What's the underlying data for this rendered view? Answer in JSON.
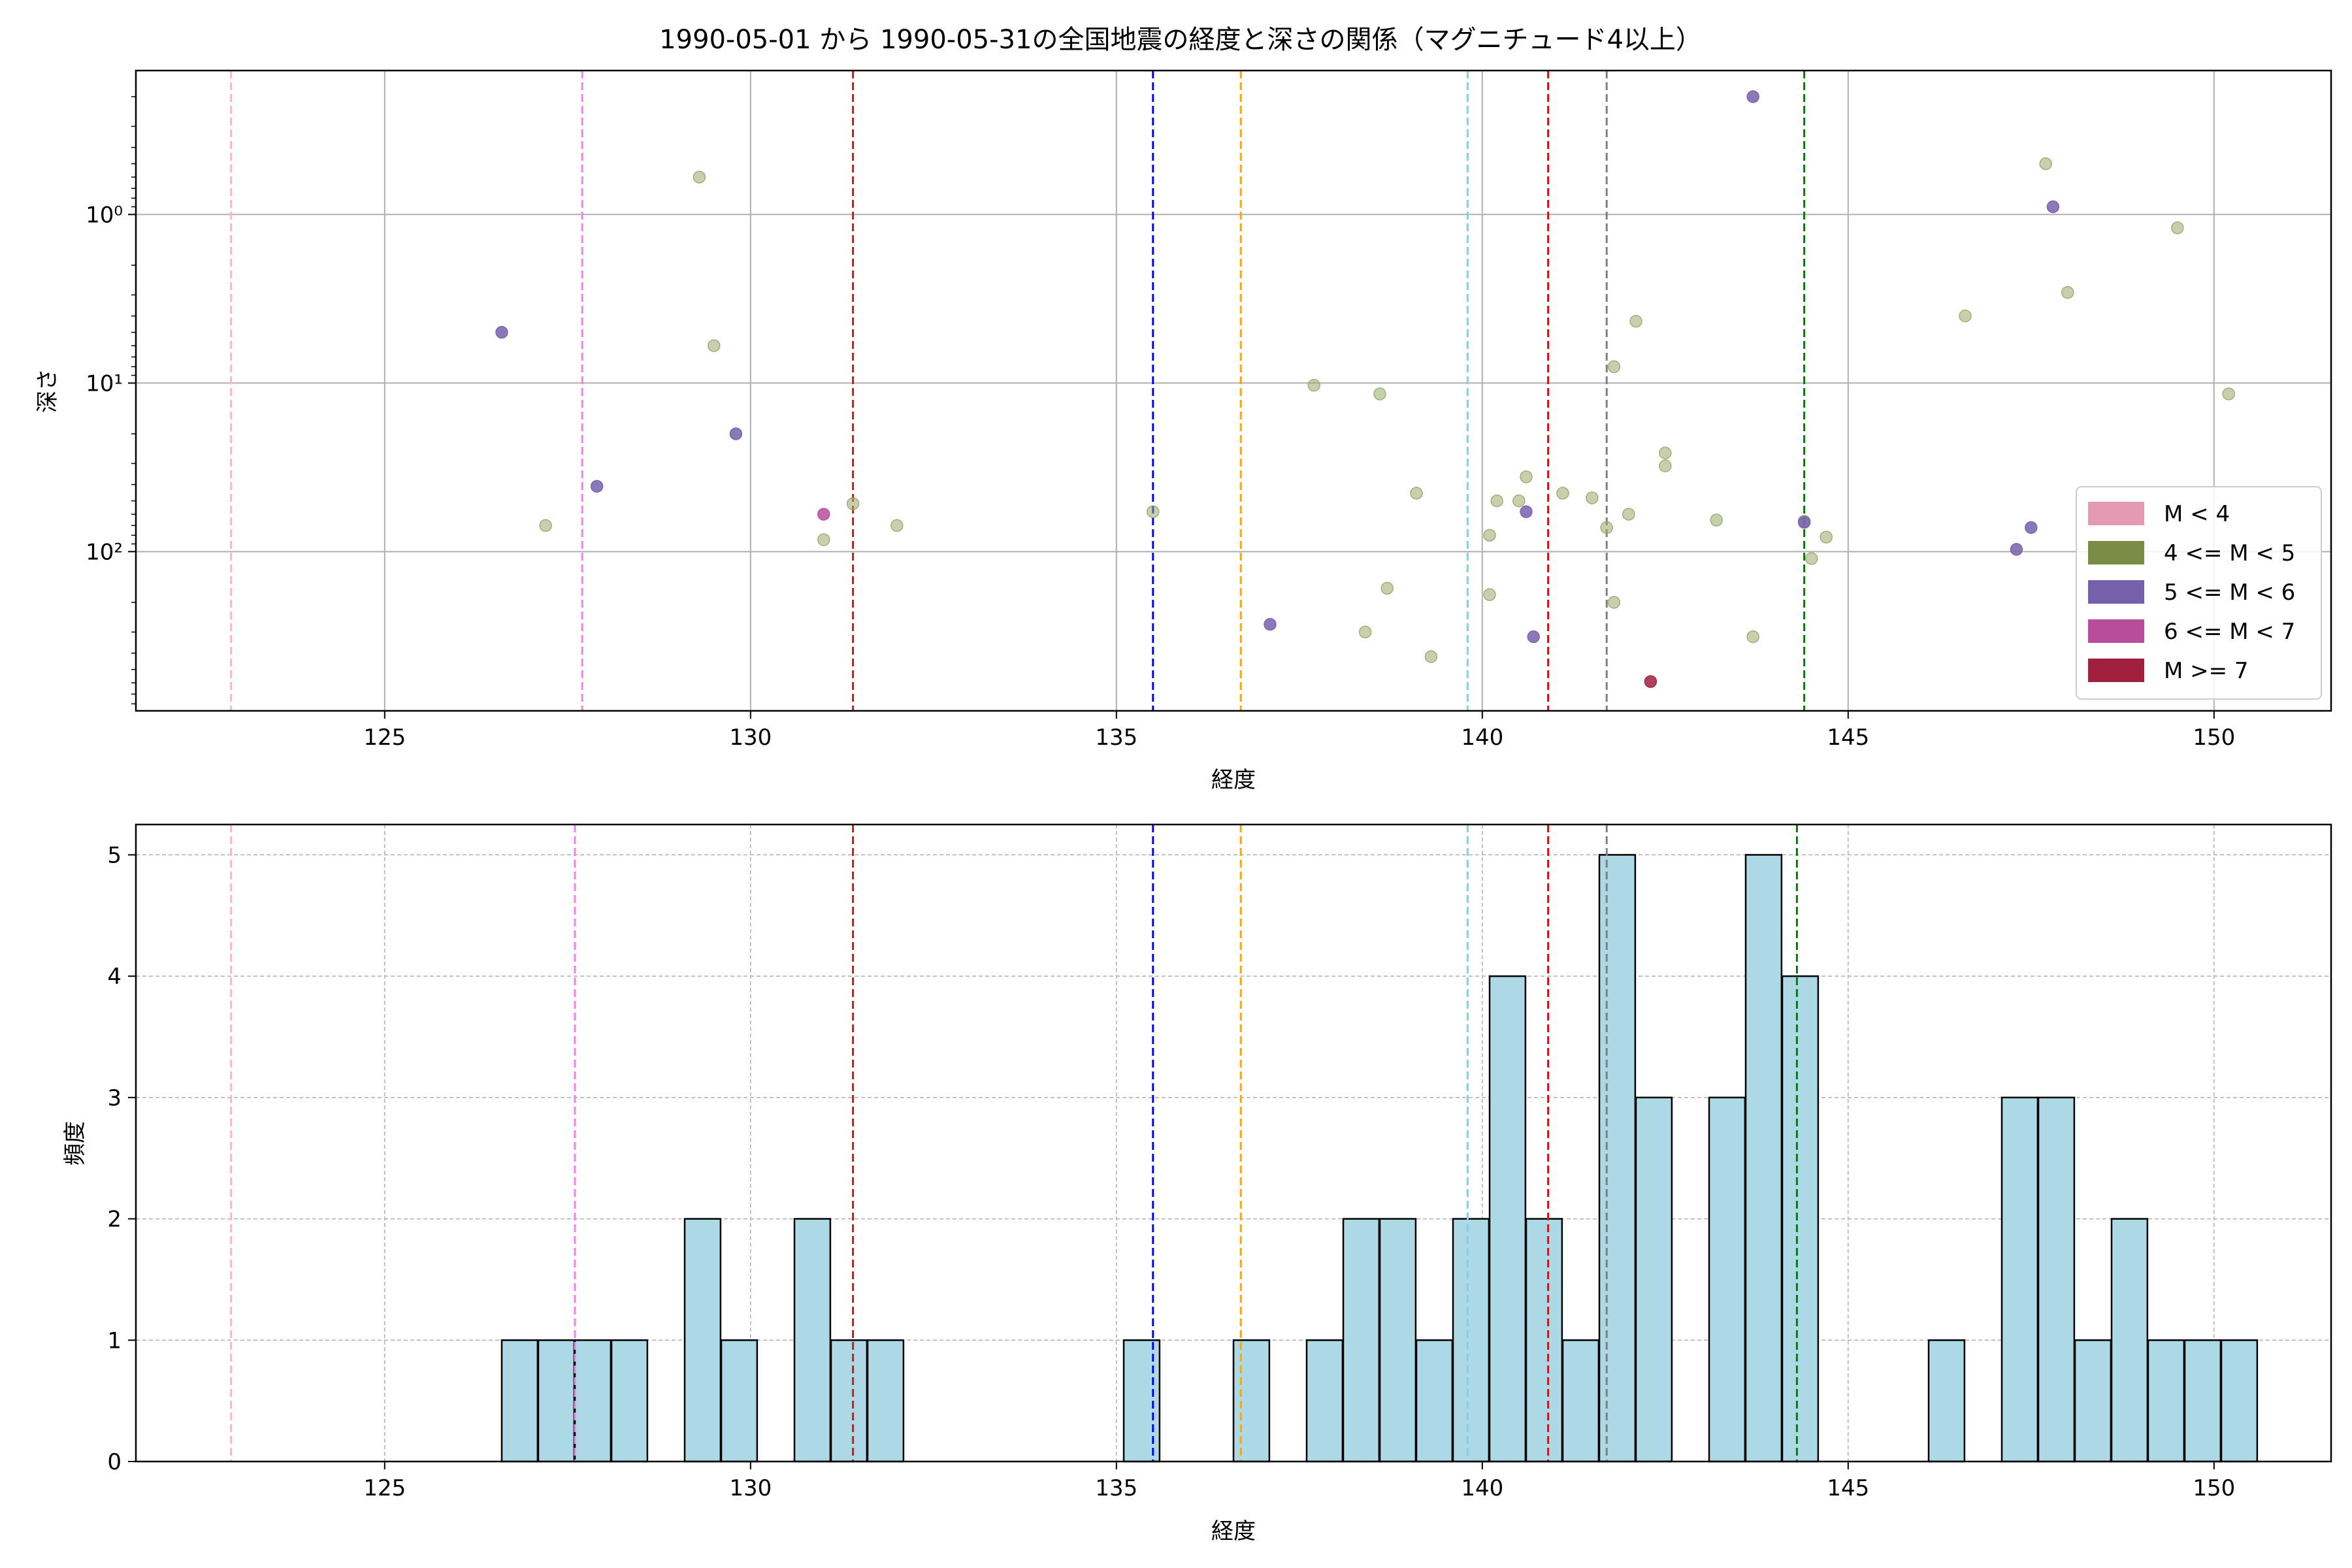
{
  "chart_data": [
    {
      "type": "scatter",
      "title": "1990-05-01 から 1990-05-31の全国地震の経度と深さの関係（マグニチュード4以上）",
      "xlabel": "経度",
      "ylabel": "深さ",
      "xlim": [
        121.6,
        151.6
      ],
      "ylim": [
        0.14,
        880
      ],
      "y_scale": "log",
      "y_inverted": true,
      "grid": true,
      "xticks": [
        125,
        130,
        135,
        140,
        145,
        150
      ],
      "yticks": [
        {
          "value": 1,
          "label": "10⁰"
        },
        {
          "value": 10,
          "label": "10¹"
        },
        {
          "value": 100,
          "label": "10²"
        }
      ],
      "legend_position": "lower-right",
      "legend": [
        {
          "label": "M < 4",
          "color": "#e59ab3"
        },
        {
          "label": "4 <= M < 5",
          "color": "#7b8c46"
        },
        {
          "label": "5 <= M < 6",
          "color": "#7560ab"
        },
        {
          "label": "6 <= M < 7",
          "color": "#b84e9b"
        },
        {
          "label": "M >= 7",
          "color": "#a0203e"
        }
      ],
      "vlines": [
        {
          "x": 122.9,
          "color": "#ffb6c1"
        },
        {
          "x": 127.7,
          "color": "#ee82ee"
        },
        {
          "x": 131.4,
          "color": "#a52a2a"
        },
        {
          "x": 135.5,
          "color": "#0000ff"
        },
        {
          "x": 136.7,
          "color": "#ffa500"
        },
        {
          "x": 139.8,
          "color": "#87ceeb"
        },
        {
          "x": 140.9,
          "color": "#ff0000"
        },
        {
          "x": 141.7,
          "color": "#808080"
        },
        {
          "x": 144.4,
          "color": "#008000"
        }
      ],
      "series": [
        {
          "name": "4 <= M < 5",
          "color": "#9aa86a",
          "points": [
            {
              "x": 127.2,
              "y": 70
            },
            {
              "x": 129.3,
              "y": 0.6
            },
            {
              "x": 129.5,
              "y": 6
            },
            {
              "x": 131.0,
              "y": 85
            },
            {
              "x": 131.4,
              "y": 52
            },
            {
              "x": 132.0,
              "y": 70
            },
            {
              "x": 135.5,
              "y": 58
            },
            {
              "x": 137.7,
              "y": 10.3
            },
            {
              "x": 138.4,
              "y": 300
            },
            {
              "x": 138.6,
              "y": 11.6
            },
            {
              "x": 138.7,
              "y": 165
            },
            {
              "x": 139.1,
              "y": 45
            },
            {
              "x": 139.3,
              "y": 420
            },
            {
              "x": 140.1,
              "y": 80
            },
            {
              "x": 140.1,
              "y": 180
            },
            {
              "x": 140.2,
              "y": 50
            },
            {
              "x": 140.5,
              "y": 50
            },
            {
              "x": 140.6,
              "y": 36
            },
            {
              "x": 141.1,
              "y": 45
            },
            {
              "x": 141.5,
              "y": 48
            },
            {
              "x": 141.7,
              "y": 72
            },
            {
              "x": 141.8,
              "y": 200
            },
            {
              "x": 141.8,
              "y": 8
            },
            {
              "x": 142.0,
              "y": 60
            },
            {
              "x": 142.1,
              "y": 4.3
            },
            {
              "x": 142.5,
              "y": 26
            },
            {
              "x": 142.5,
              "y": 31
            },
            {
              "x": 143.2,
              "y": 65
            },
            {
              "x": 143.7,
              "y": 320
            },
            {
              "x": 144.4,
              "y": 66
            },
            {
              "x": 144.5,
              "y": 110
            },
            {
              "x": 144.7,
              "y": 82
            },
            {
              "x": 146.6,
              "y": 4
            },
            {
              "x": 147.7,
              "y": 0.5
            },
            {
              "x": 148.0,
              "y": 2.9
            },
            {
              "x": 149.5,
              "y": 1.2
            },
            {
              "x": 150.2,
              "y": 11.6
            }
          ]
        },
        {
          "name": "5 <= M < 6",
          "color": "#7560ab",
          "points": [
            {
              "x": 126.6,
              "y": 5
            },
            {
              "x": 127.9,
              "y": 41
            },
            {
              "x": 129.8,
              "y": 20
            },
            {
              "x": 137.1,
              "y": 270
            },
            {
              "x": 140.6,
              "y": 58
            },
            {
              "x": 140.7,
              "y": 320
            },
            {
              "x": 143.7,
              "y": 0.2
            },
            {
              "x": 144.4,
              "y": 67
            },
            {
              "x": 147.3,
              "y": 97
            },
            {
              "x": 147.5,
              "y": 72
            },
            {
              "x": 147.8,
              "y": 0.9
            }
          ]
        },
        {
          "name": "6 <= M < 7",
          "color": "#b84e9b",
          "points": [
            {
              "x": 131.0,
              "y": 60
            }
          ]
        },
        {
          "name": "M >= 7",
          "color": "#a0203e",
          "points": [
            {
              "x": 142.3,
              "y": 590
            }
          ]
        }
      ]
    },
    {
      "type": "bar",
      "title": "",
      "xlabel": "経度",
      "ylabel": "頻度",
      "xlim": [
        121.6,
        151.6
      ],
      "ylim": [
        0,
        5.25
      ],
      "grid": true,
      "bar_color": "#add8e6",
      "bar_width": 0.49,
      "xticks": [
        125,
        130,
        135,
        140,
        145,
        150
      ],
      "yticks": [
        0,
        1,
        2,
        3,
        4,
        5
      ],
      "bins": [
        {
          "x": 126.6,
          "count": 1
        },
        {
          "x": 127.1,
          "count": 1
        },
        {
          "x": 127.6,
          "count": 1
        },
        {
          "x": 128.1,
          "count": 1
        },
        {
          "x": 129.1,
          "count": 2
        },
        {
          "x": 129.6,
          "count": 1
        },
        {
          "x": 130.6,
          "count": 2
        },
        {
          "x": 131.1,
          "count": 1
        },
        {
          "x": 131.6,
          "count": 1
        },
        {
          "x": 135.1,
          "count": 1
        },
        {
          "x": 136.6,
          "count": 1
        },
        {
          "x": 137.6,
          "count": 1
        },
        {
          "x": 138.1,
          "count": 2
        },
        {
          "x": 138.6,
          "count": 2
        },
        {
          "x": 139.1,
          "count": 1
        },
        {
          "x": 139.6,
          "count": 2
        },
        {
          "x": 140.1,
          "count": 4
        },
        {
          "x": 140.6,
          "count": 2
        },
        {
          "x": 141.1,
          "count": 1
        },
        {
          "x": 141.6,
          "count": 5
        },
        {
          "x": 142.1,
          "count": 3
        },
        {
          "x": 143.1,
          "count": 3
        },
        {
          "x": 143.6,
          "count": 5
        },
        {
          "x": 144.1,
          "count": 4
        },
        {
          "x": 146.1,
          "count": 1
        },
        {
          "x": 147.1,
          "count": 3
        },
        {
          "x": 147.6,
          "count": 3
        },
        {
          "x": 148.1,
          "count": 1
        },
        {
          "x": 148.6,
          "count": 2
        },
        {
          "x": 149.1,
          "count": 1
        },
        {
          "x": 149.6,
          "count": 1
        },
        {
          "x": 150.1,
          "count": 1
        }
      ],
      "vlines": [
        {
          "x": 122.9,
          "color": "#ffb6c1"
        },
        {
          "x": 127.6,
          "color": "#ee82ee"
        },
        {
          "x": 131.4,
          "color": "#a52a2a"
        },
        {
          "x": 135.5,
          "color": "#0000ff"
        },
        {
          "x": 136.7,
          "color": "#ffa500"
        },
        {
          "x": 139.8,
          "color": "#87ceeb"
        },
        {
          "x": 140.9,
          "color": "#ff0000"
        },
        {
          "x": 141.7,
          "color": "#808080"
        },
        {
          "x": 144.3,
          "color": "#008000"
        }
      ]
    }
  ]
}
